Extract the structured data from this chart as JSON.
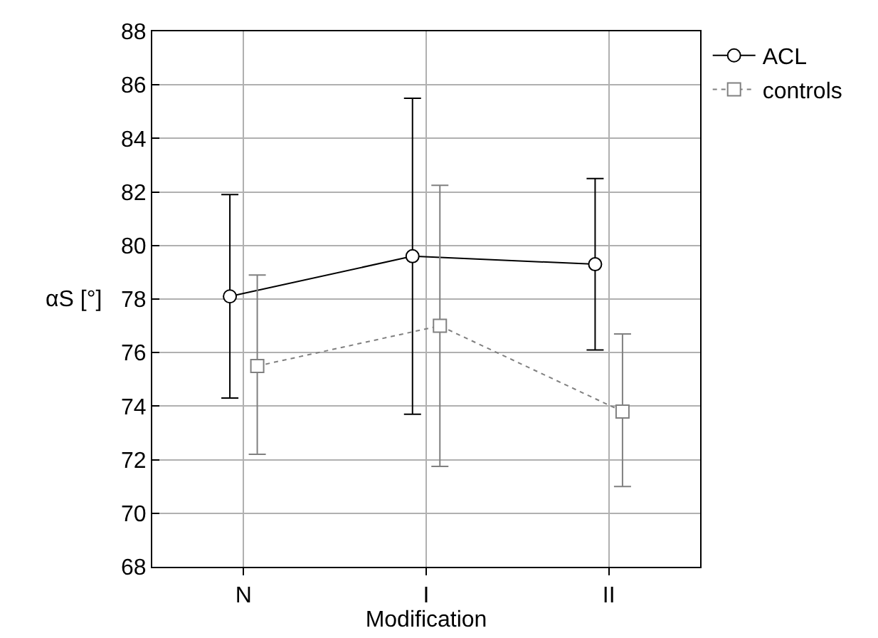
{
  "chart_data": {
    "type": "line",
    "xlabel": "Modification",
    "ylabel": "αS [°]",
    "categories": [
      "N",
      "I",
      "II"
    ],
    "series": [
      {
        "name": "ACL",
        "color": "#000000",
        "marker": "circle",
        "line_style": "solid",
        "values": [
          78.1,
          79.6,
          79.3
        ],
        "errors": [
          [
            74.3,
            81.9
          ],
          [
            73.7,
            85.5
          ],
          [
            76.1,
            82.5
          ]
        ]
      },
      {
        "name": "controls",
        "color": "#808080",
        "marker": "square",
        "line_style": "dotted",
        "values": [
          75.5,
          77.0,
          73.8
        ],
        "errors": [
          [
            72.2,
            78.9
          ],
          [
            71.75,
            82.25
          ],
          [
            71.0,
            76.7
          ]
        ]
      }
    ],
    "ylim": [
      68,
      88
    ],
    "yticks": [
      68,
      70,
      72,
      74,
      76,
      78,
      80,
      82,
      84,
      86,
      88
    ],
    "grid": true,
    "legend": "top right"
  }
}
